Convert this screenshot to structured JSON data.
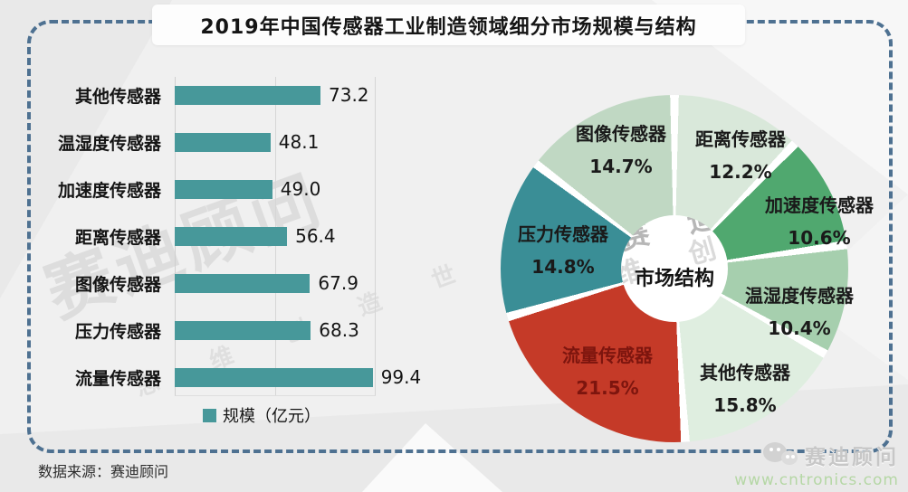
{
  "page": {
    "title": "2019年中国传感器工业制造领域细分市场规模与结构",
    "source_note": "数据来源：赛迪顾问",
    "watermark_main": "赛迪顾问",
    "watermark_sub": "思 维 创 造 世 界",
    "watermark_pie_fragment": "赛 迪",
    "watermark_pie": "维 创",
    "footer": {
      "brand": "赛迪顾问",
      "url": "www.cntronics.com",
      "icon": "wechat-bubbles-icon"
    }
  },
  "colors": {
    "bar": "#47989a",
    "dashed_border": "#4e7191",
    "background": "#f0f0f0",
    "flow_label_text": "#7d150e"
  },
  "chart_data": [
    {
      "type": "bar",
      "orientation": "horizontal",
      "legend": [
        "规模（亿元）"
      ],
      "categories": [
        "其他传感器",
        "温湿度传感器",
        "加速度传感器",
        "距离传感器",
        "图像传感器",
        "压力传感器",
        "流量传感器"
      ],
      "values": [
        73.2,
        48.1,
        49.0,
        56.4,
        67.9,
        68.3,
        99.4
      ],
      "value_labels": [
        "73.2",
        "48.1",
        "49.0",
        "56.4",
        "67.9",
        "68.3",
        "99.4"
      ],
      "xlim": [
        0,
        110
      ],
      "gridlines_at": [
        0,
        50,
        100
      ],
      "bar_color": "#47989a",
      "unit": "亿元"
    },
    {
      "type": "pie",
      "donut": true,
      "center_label": "市场结构",
      "start_angle_deg": 0,
      "direction": "clockwise",
      "slices": [
        {
          "label": "距离传感器",
          "value_pct": 12.2,
          "color": "#d9e8da"
        },
        {
          "label": "加速度传感器",
          "value_pct": 10.6,
          "color": "#50a86f"
        },
        {
          "label": "温湿度传感器",
          "value_pct": 10.4,
          "color": "#a6cfae"
        },
        {
          "label": "其他传感器",
          "value_pct": 15.8,
          "color": "#dfeee0"
        },
        {
          "label": "流量传感器",
          "value_pct": 21.5,
          "color": "#c53a28",
          "label_color": "#7d150e"
        },
        {
          "label": "压力传感器",
          "value_pct": 14.8,
          "color": "#3a8e96"
        },
        {
          "label": "图像传感器",
          "value_pct": 14.7,
          "color": "#c0d8c3"
        }
      ]
    }
  ]
}
